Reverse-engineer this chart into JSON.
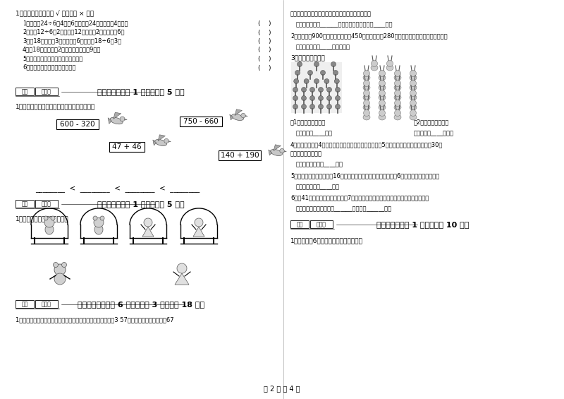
{
  "bg_color": "#ffffff",
  "footer_text": "第 2 页 共 4 页",
  "left": {
    "judge_title": "1、判断题：（对的打 √ ，错的打 × ）。",
    "judge_items": [
      "1、在算彗24÷6＝4中，6是除数，24是被除数，4是商。",
      "2、算彗12÷6＝2，表示抄12平均分成2份，每份是6。",
      "3、抄18平均分成3份，每份是6，列式是18÷6＝3。",
      "4、抄18个苹果分绒2个小朋友，每人変9个。",
      "5、商和除数相乘，结果等于被除数。",
      "6、每份分得同样多，叫平均分。"
    ],
    "sec6_header": "六、比一比（共 1 大题，共计 5 分）",
    "sec6_inst": "1、把下列算式按得数大小，从小到大排一行。",
    "box1": "600 - 320",
    "box2": "47 + 46",
    "box3": "750 - 660",
    "box4": "140 + 190",
    "blanks": "________  <  ________  <  ________  <  ________",
    "sec7_header": "七、连一连（共 1 大题，共计 5 分）",
    "sec7_inst": "1、连一连镜子里看到的图像。",
    "sec8_header": "八、解决问题（共 6 小题，每题 3 分，共计 18 分）",
    "sec8_q1": "1、东方小学一、二年级同学给山区小朋友捐图书，一年级捐了3 57本，二年级比一年级多捖67"
  },
  "right": {
    "q1_cont": "本，二年级捐了多少本？两个年级一共捐了多少本？",
    "q1_ans": "答：二年级捐了______本，两个年级一共捐了____本。",
    "q2": "2、菜站运来900千克蔬菜，卖出去450千克，又运来280千克，现在菜站有多少千克蔬菜？",
    "q2_ans": "答：现在菜站有____千克蔬菜。",
    "q3": "3、看图列式计算。",
    "q3_label1": "（1）一共有多少人？",
    "q3_label2": "（2）一共有几只兔？",
    "q3_ans1": "答：一共有____人。",
    "q3_ans2": "答：一共有____只兔。",
    "q4": "4、周日，小明和4个同学去公园玩，公园的儿童票是每匨5元。他们一共花了多少元？帰30元",
    "q4b": "去，买票的閒够吗？",
    "q4_ans": "答：他们一共花了____元。",
    "q5": "5、小明的妈妈买回来一根16米长的绳子，截去一些做跳绳，还副6米，做跳绳用去多少米？",
    "q5_ans": "答：做跳绳用去____米。",
    "q6": "6、有41本故事书，把这些书分给7个小朋友，平均每个小朋友分到几本，还剩几本？",
    "q6_ans": "答：平均每个小朋友分到______本，还剩______本。",
    "sec10_header": "十、综合题（共 1 大题，共计 10 分）",
    "sec10_q1": "1、气象小刹6月份的天气作了如下记录："
  },
  "score_label1": "得分",
  "score_label2": "评卷人"
}
